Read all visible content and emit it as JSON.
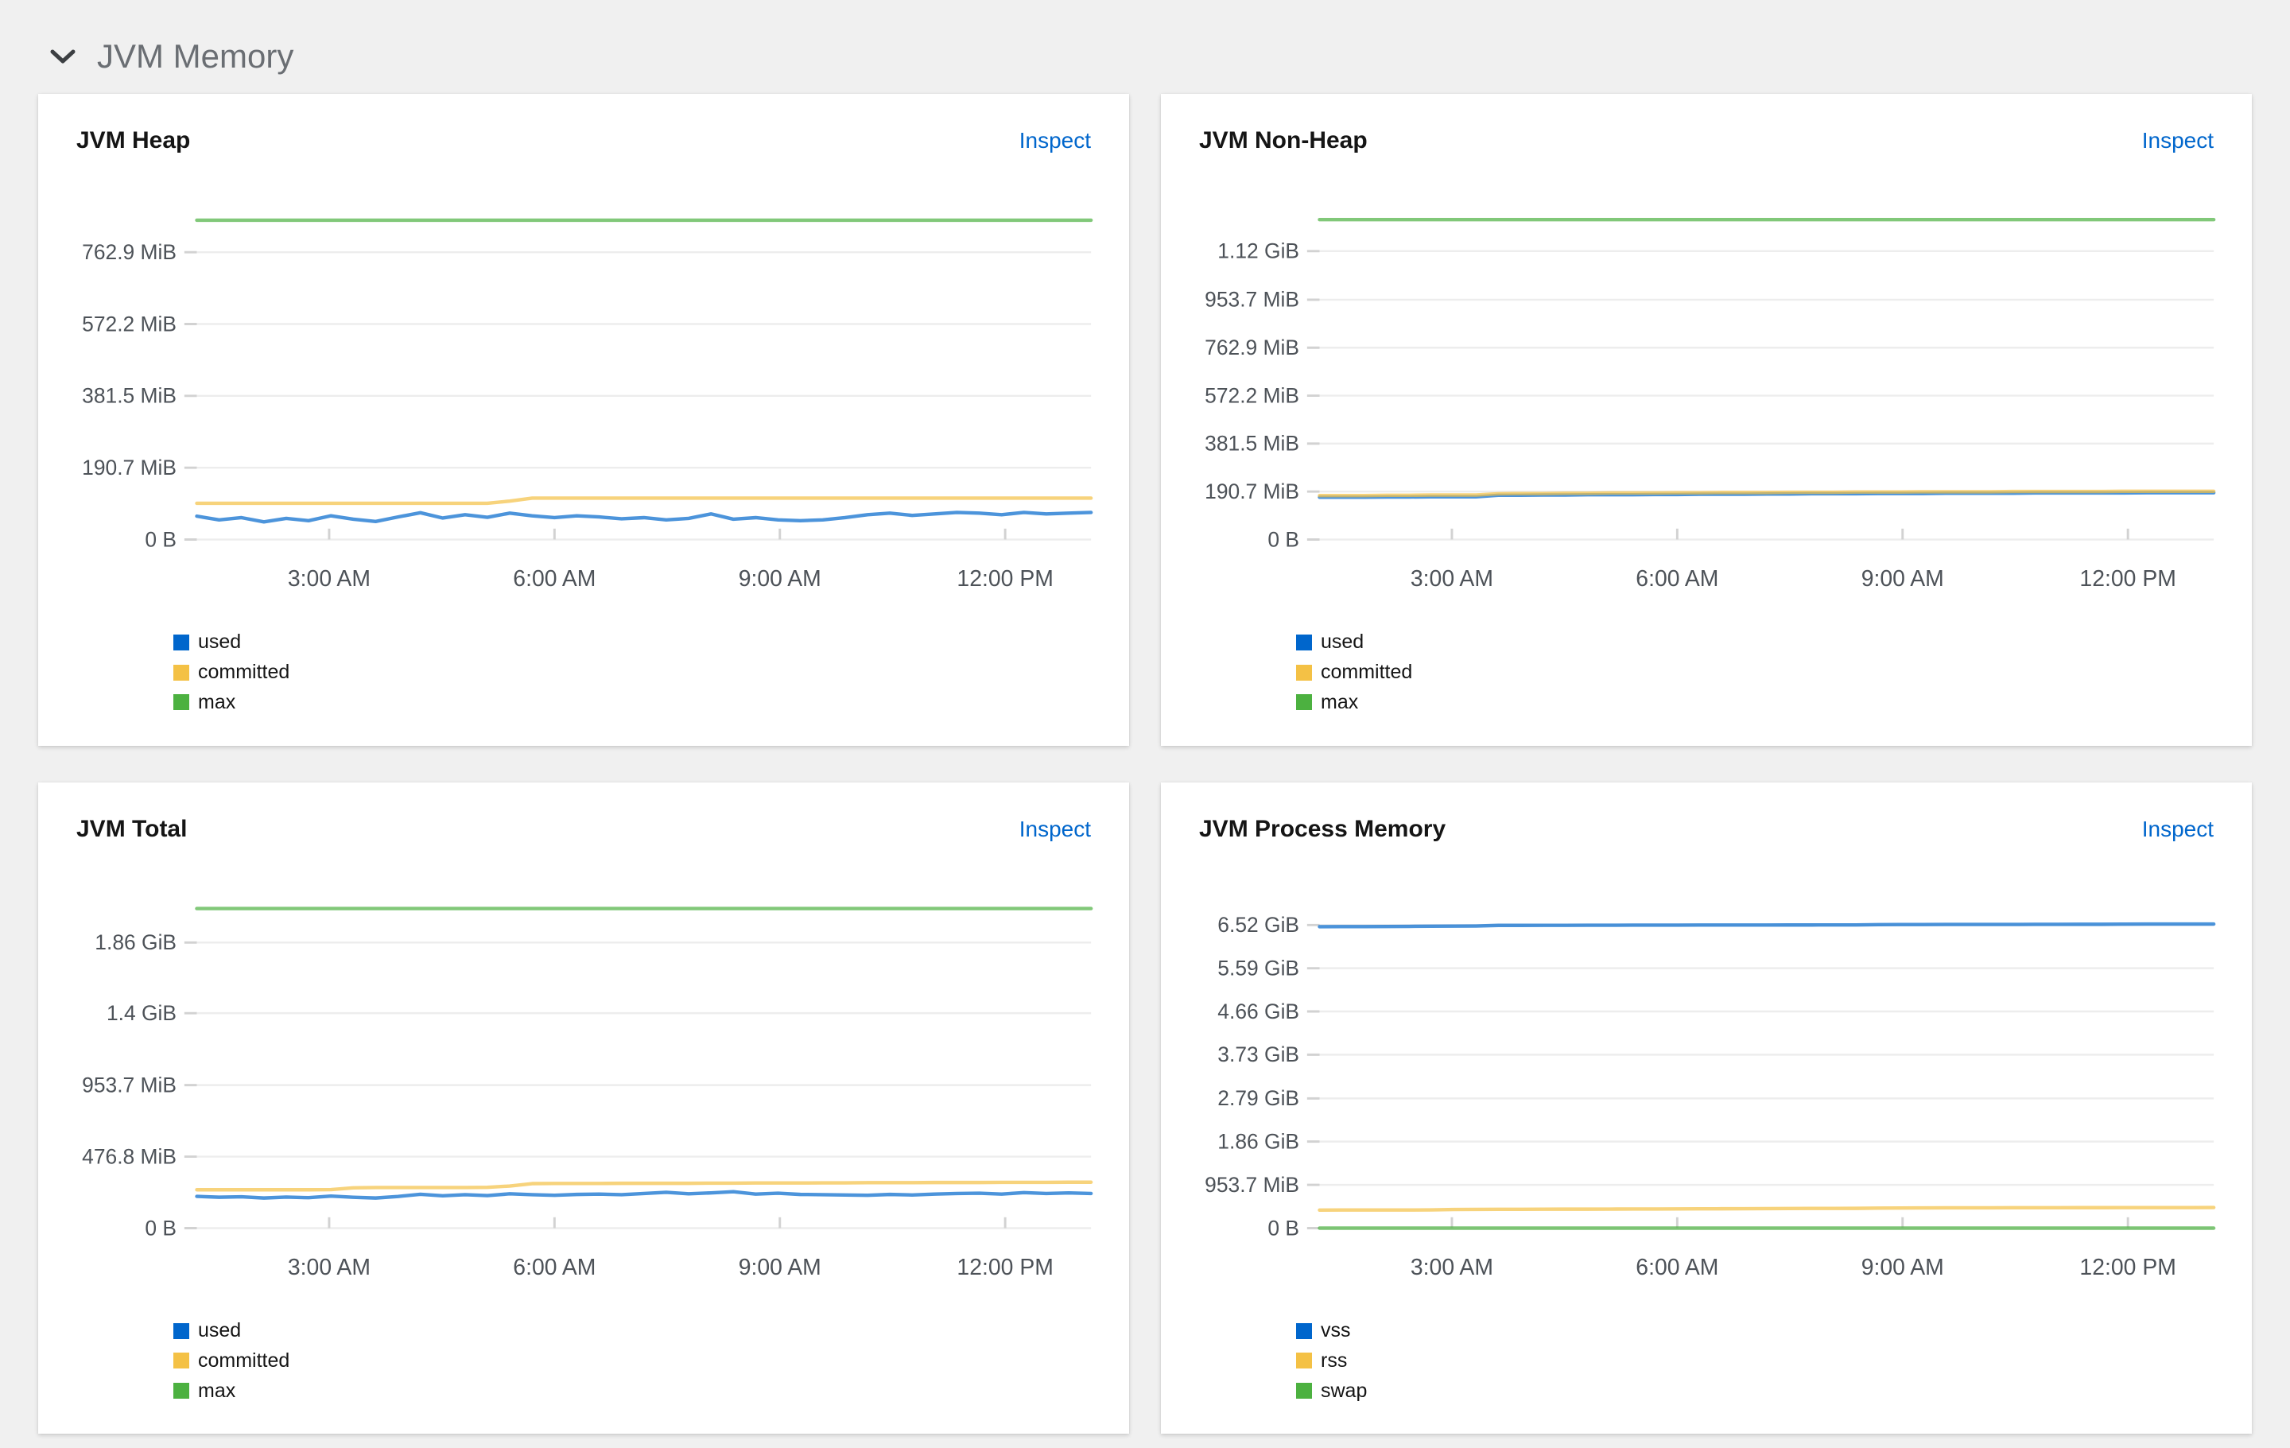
{
  "page": {
    "background": "#f0f0f0"
  },
  "section": {
    "title": "JVM Memory",
    "collapse_icon": "chevron-down"
  },
  "colors": {
    "link": "#0066cc",
    "grid_line": "#ededed",
    "tick": "#d2d2d2",
    "axis_label": "#4d5258",
    "series_blue": "#0066CC",
    "series_gold": "#F4C145",
    "series_green": "#4CB140"
  },
  "panels": [
    {
      "title": "JVM Heap",
      "inspect_label": "Inspect"
    },
    {
      "title": "JVM Non-Heap",
      "inspect_label": "Inspect"
    },
    {
      "title": "JVM Total",
      "inspect_label": "Inspect"
    },
    {
      "title": "JVM Process Memory",
      "inspect_label": "Inspect"
    }
  ],
  "chart_data": [
    {
      "type": "line",
      "title": "JVM Heap",
      "unit": "MiB",
      "grid": true,
      "legend_position": "bottom-left",
      "y_domain": [
        0,
        868
      ],
      "y_ticks": [
        {
          "label": "0 B",
          "value": 0
        },
        {
          "label": "190.7 MiB",
          "value": 190.7
        },
        {
          "label": "381.5 MiB",
          "value": 381.5
        },
        {
          "label": "572.2 MiB",
          "value": 572.2
        },
        {
          "label": "762.9 MiB",
          "value": 762.9
        }
      ],
      "x_ticks": [
        {
          "label": "3:00 AM",
          "f": 0.148
        },
        {
          "label": "6:00 AM",
          "f": 0.4
        },
        {
          "label": "9:00 AM",
          "f": 0.652
        },
        {
          "label": "12:00 PM",
          "f": 0.904
        }
      ],
      "series": [
        {
          "name": "used",
          "color": "#0066CC",
          "values": [
            62,
            52,
            58,
            47,
            56,
            50,
            63,
            54,
            48,
            60,
            71,
            57,
            66,
            59,
            70,
            63,
            58,
            63,
            60,
            55,
            58,
            52,
            56,
            68,
            54,
            58,
            52,
            50,
            52,
            58,
            66,
            70,
            64,
            68,
            72,
            70,
            66,
            72,
            68,
            70,
            72
          ]
        },
        {
          "name": "committed",
          "color": "#F4C145",
          "values": [
            96,
            96,
            96,
            96,
            96,
            96,
            96,
            96,
            96,
            96,
            96,
            96,
            96,
            96,
            102,
            110,
            110,
            110,
            110,
            110,
            110,
            110,
            110,
            110,
            110,
            110,
            110,
            110,
            110,
            110,
            110,
            110,
            110,
            110,
            110,
            110,
            110,
            110,
            110,
            110,
            110
          ]
        },
        {
          "name": "max",
          "color": "#4CB140",
          "value": 848
        }
      ]
    },
    {
      "type": "line",
      "title": "JVM Non-Heap",
      "unit": "MiB",
      "grid": true,
      "legend_position": "bottom-left",
      "y_domain": [
        0,
        1300
      ],
      "y_ticks": [
        {
          "label": "0 B",
          "value": 0
        },
        {
          "label": "190.7 MiB",
          "value": 190.7
        },
        {
          "label": "381.5 MiB",
          "value": 381.5
        },
        {
          "label": "572.2 MiB",
          "value": 572.2
        },
        {
          "label": "762.9 MiB",
          "value": 762.9
        },
        {
          "label": "953.7 MiB",
          "value": 953.7
        },
        {
          "label": "1.12 GiB",
          "value": 1146.9
        }
      ],
      "x_ticks": [
        {
          "label": "3:00 AM",
          "f": 0.148
        },
        {
          "label": "6:00 AM",
          "f": 0.4
        },
        {
          "label": "9:00 AM",
          "f": 0.652
        },
        {
          "label": "12:00 PM",
          "f": 0.904
        }
      ],
      "series": [
        {
          "name": "used",
          "color": "#0066CC",
          "values": [
            168,
            168,
            168,
            169,
            169,
            170,
            170,
            170,
            176,
            176,
            177,
            177,
            178,
            178,
            178,
            179,
            179,
            180,
            180,
            180,
            181,
            181,
            182,
            182,
            182,
            183,
            183,
            183,
            184,
            184,
            184,
            184,
            185,
            185,
            185,
            185,
            185,
            186,
            186,
            186,
            186
          ]
        },
        {
          "name": "committed",
          "color": "#F4C145",
          "values": [
            175,
            175,
            175,
            176,
            176,
            177,
            177,
            177,
            182,
            183,
            183,
            184,
            184,
            185,
            185,
            185,
            186,
            186,
            187,
            187,
            187,
            188,
            188,
            188,
            189,
            189,
            189,
            190,
            190,
            190,
            190,
            191,
            191,
            191,
            191,
            191,
            192,
            192,
            192,
            192,
            192
          ]
        },
        {
          "name": "max",
          "color": "#4CB140",
          "value": 1272
        }
      ]
    },
    {
      "type": "line",
      "title": "JVM Total",
      "unit": "MiB",
      "grid": true,
      "legend_position": "bottom-left",
      "y_domain": [
        0,
        2180
      ],
      "y_ticks": [
        {
          "label": "0 B",
          "value": 0
        },
        {
          "label": "476.8 MiB",
          "value": 476.8
        },
        {
          "label": "953.7 MiB",
          "value": 953.7
        },
        {
          "label": "1.4 GiB",
          "value": 1433.6
        },
        {
          "label": "1.86 GiB",
          "value": 1904.6
        }
      ],
      "x_ticks": [
        {
          "label": "3:00 AM",
          "f": 0.148
        },
        {
          "label": "6:00 AM",
          "f": 0.4
        },
        {
          "label": "9:00 AM",
          "f": 0.652
        },
        {
          "label": "12:00 PM",
          "f": 0.904
        }
      ],
      "series": [
        {
          "name": "used",
          "color": "#0066CC",
          "values": [
            212,
            206,
            209,
            201,
            207,
            203,
            214,
            206,
            201,
            211,
            226,
            216,
            223,
            217,
            229,
            223,
            219,
            225,
            227,
            223,
            231,
            239,
            229,
            235,
            243,
            227,
            233,
            225,
            223,
            221,
            219,
            225,
            221,
            227,
            231,
            233,
            227,
            237,
            231,
            235,
            231
          ]
        },
        {
          "name": "committed",
          "color": "#F4C145",
          "values": [
            256,
            256,
            256,
            256,
            256,
            256,
            257,
            269,
            271,
            271,
            271,
            271,
            271,
            272,
            281,
            297,
            298,
            298,
            298,
            299,
            299,
            299,
            299,
            300,
            300,
            301,
            301,
            301,
            302,
            302,
            303,
            303,
            303,
            304,
            304,
            304,
            305,
            305,
            305,
            306,
            306
          ]
        },
        {
          "name": "max",
          "color": "#4CB140",
          "value": 2131
        }
      ]
    },
    {
      "type": "line",
      "title": "JVM Process Memory",
      "unit": "MiB",
      "grid": true,
      "legend_position": "bottom-left",
      "y_domain": [
        0,
        7200
      ],
      "y_ticks": [
        {
          "label": "0 B",
          "value": 0
        },
        {
          "label": "953.7 MiB",
          "value": 953.7
        },
        {
          "label": "1.86 GiB",
          "value": 1907.3
        },
        {
          "label": "2.79 GiB",
          "value": 2857.4
        },
        {
          "label": "3.73 GiB",
          "value": 3819.9
        },
        {
          "label": "4.66 GiB",
          "value": 4772.1
        },
        {
          "label": "5.59 GiB",
          "value": 5724.4
        },
        {
          "label": "6.52 GiB",
          "value": 6676.6
        }
      ],
      "x_ticks": [
        {
          "label": "3:00 AM",
          "f": 0.148
        },
        {
          "label": "6:00 AM",
          "f": 0.4
        },
        {
          "label": "9:00 AM",
          "f": 0.652
        },
        {
          "label": "12:00 PM",
          "f": 0.904
        }
      ],
      "series": [
        {
          "name": "vss",
          "color": "#0066CC",
          "values": [
            6640,
            6641,
            6642,
            6643,
            6646,
            6650,
            6652,
            6654,
            6668,
            6669,
            6670,
            6671,
            6672,
            6672,
            6673,
            6674,
            6674,
            6675,
            6675,
            6676,
            6676,
            6677,
            6677,
            6678,
            6678,
            6686,
            6688,
            6688,
            6689,
            6689,
            6690,
            6690,
            6691,
            6691,
            6692,
            6692,
            6696,
            6697,
            6697,
            6698,
            6698
          ]
        },
        {
          "name": "rss",
          "color": "#F4C145",
          "values": [
            398,
            399,
            399,
            400,
            400,
            402,
            410,
            414,
            415,
            415,
            416,
            418,
            418,
            420,
            421,
            422,
            424,
            425,
            426,
            428,
            430,
            432,
            433,
            434,
            436,
            440,
            444,
            446,
            447,
            448,
            448,
            449,
            450,
            450,
            451,
            451,
            452,
            452,
            453,
            453,
            454
          ]
        },
        {
          "name": "swap",
          "color": "#4CB140",
          "value": 0
        }
      ]
    }
  ]
}
